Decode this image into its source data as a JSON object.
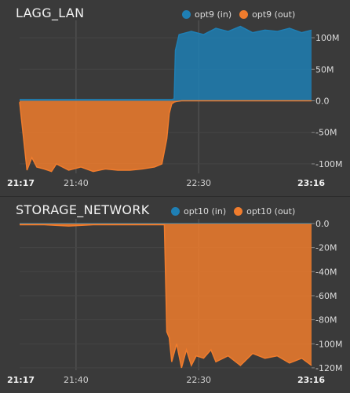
{
  "colors": {
    "in": "#1f7fb4",
    "out": "#f07c2d",
    "background": "#3a3a3a",
    "grid": "#5a5a5a"
  },
  "panels": [
    {
      "title": "LAGG_LAN",
      "legend": [
        {
          "label": "opt9 (in)",
          "color": "#1f7fb4"
        },
        {
          "label": "opt9 (out)",
          "color": "#f07c2d"
        }
      ],
      "x_labels": {
        "start": "21:17",
        "mid1": "21:40",
        "mid2": "22:30",
        "end": "23:16"
      },
      "y_ticks": [
        "100M",
        "50M",
        "0.0",
        "-50M",
        "-100M"
      ]
    },
    {
      "title": "STORAGE_NETWORK",
      "legend": [
        {
          "label": "opt10 (in)",
          "color": "#1f7fb4"
        },
        {
          "label": "opt10 (out)",
          "color": "#f07c2d"
        }
      ],
      "x_labels": {
        "start": "21:17",
        "mid1": "21:40",
        "mid2": "22:30",
        "end": "23:16"
      },
      "y_ticks": [
        "0.0",
        "-20M",
        "-40M",
        "-60M",
        "-80M",
        "-100M",
        "-120M"
      ]
    }
  ],
  "chart_data": [
    {
      "type": "area",
      "title": "LAGG_LAN",
      "x_unit": "minutes since 21:17",
      "x_range": [
        "21:17",
        "23:16"
      ],
      "x_ticks": [
        "21:17",
        "21:40",
        "22:30",
        "23:16"
      ],
      "ylim": [
        -115,
        120
      ],
      "y_unit": "M",
      "series": [
        {
          "name": "opt9 (in)",
          "x": [
            0,
            30,
            60,
            62,
            63,
            63.5,
            65,
            70,
            75,
            80,
            85,
            90,
            95,
            100,
            105,
            110,
            115,
            119
          ],
          "values": [
            2,
            2,
            2,
            2,
            3,
            80,
            105,
            110,
            105,
            115,
            110,
            118,
            108,
            112,
            110,
            115,
            108,
            112
          ]
        },
        {
          "name": "opt9 (out)",
          "x": [
            0,
            3,
            5,
            7,
            10,
            13,
            15,
            20,
            25,
            30,
            35,
            40,
            45,
            50,
            55,
            58,
            59,
            60,
            61,
            62,
            63,
            64,
            66,
            80,
            100,
            119
          ],
          "values": [
            -2,
            -110,
            -90,
            -105,
            -108,
            -112,
            -100,
            -110,
            -105,
            -112,
            -108,
            -110,
            -110,
            -108,
            -105,
            -100,
            -80,
            -60,
            -20,
            -5,
            -2,
            -1,
            0,
            0,
            0,
            0
          ]
        }
      ]
    },
    {
      "type": "area",
      "title": "STORAGE_NETWORK",
      "x_unit": "minutes since 21:17",
      "x_range": [
        "21:17",
        "23:16"
      ],
      "x_ticks": [
        "21:17",
        "21:40",
        "22:30",
        "23:16"
      ],
      "ylim": [
        -122,
        0
      ],
      "y_unit": "M",
      "series": [
        {
          "name": "opt10 (in)",
          "x": [
            0,
            119
          ],
          "values": [
            0,
            0
          ]
        },
        {
          "name": "opt10 (out)",
          "x": [
            0,
            10,
            20,
            30,
            40,
            50,
            55,
            58,
            59,
            60,
            61,
            62,
            64,
            66,
            68,
            70,
            72,
            75,
            78,
            80,
            85,
            90,
            95,
            100,
            105,
            110,
            115,
            119
          ],
          "values": [
            -1,
            -1,
            -2,
            -1,
            -1,
            -1,
            -1,
            -1,
            -1,
            -90,
            -95,
            -115,
            -100,
            -120,
            -105,
            -118,
            -110,
            -112,
            -105,
            -115,
            -110,
            -118,
            -108,
            -112,
            -110,
            -116,
            -112,
            -118
          ]
        }
      ]
    }
  ]
}
